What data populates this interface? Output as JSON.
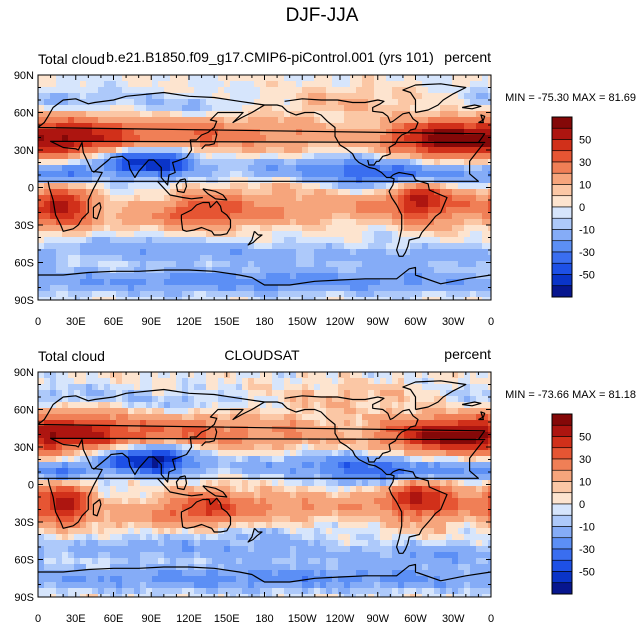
{
  "title": "DJF-JJA",
  "colors": {
    "levels": [
      "#07168e",
      "#0a34c8",
      "#1d50e6",
      "#3a6ef0",
      "#5c8ff5",
      "#85acf7",
      "#adc9fa",
      "#d6e5fc",
      "#fde4cf",
      "#fbc7a5",
      "#f6a57c",
      "#f07f56",
      "#e65533",
      "#d1301a",
      "#ad1510",
      "#840808"
    ],
    "coast": "#000000"
  },
  "chart_data": [
    {
      "type": "heatmap",
      "title_left": "Total cloud",
      "title_center": "b.e21.B1850.f09_g17.CMIP6-piControl.001 (yrs 101)",
      "title_right": "percent",
      "stats": "MIN = -75.30 MAX =  81.69",
      "min": -75.3,
      "max": 81.69,
      "xticks": [
        "0",
        "30E",
        "60E",
        "90E",
        "120E",
        "150E",
        "180",
        "150W",
        "120W",
        "90W",
        "60W",
        "30W",
        "0"
      ],
      "yticks": [
        "90N",
        "60N",
        "30N",
        "0",
        "30S",
        "60S",
        "90S"
      ],
      "colorbar_labels": [
        "50",
        "30",
        "10",
        "0",
        "-10",
        "-30",
        "-50"
      ],
      "colorbar_levels": [
        -60,
        -50,
        -40,
        -30,
        -20,
        -10,
        -5,
        0,
        5,
        10,
        20,
        30,
        40,
        50,
        60
      ]
    },
    {
      "type": "heatmap",
      "title_left": "Total cloud",
      "title_center": "CLOUDSAT",
      "title_right": "percent",
      "stats": "MIN = -73.66 MAX =  81.18",
      "min": -73.66,
      "max": 81.18,
      "xticks": [
        "0",
        "30E",
        "60E",
        "90E",
        "120E",
        "150E",
        "180",
        "150W",
        "120W",
        "90W",
        "60W",
        "30W",
        "0"
      ],
      "yticks": [
        "90N",
        "60N",
        "30N",
        "0",
        "30S",
        "60S",
        "90S"
      ],
      "colorbar_labels": [
        "50",
        "30",
        "10",
        "0",
        "-10",
        "-30",
        "-50"
      ],
      "colorbar_levels": [
        -60,
        -50,
        -40,
        -30,
        -20,
        -10,
        -5,
        0,
        5,
        10,
        20,
        30,
        40,
        50,
        60
      ]
    }
  ]
}
